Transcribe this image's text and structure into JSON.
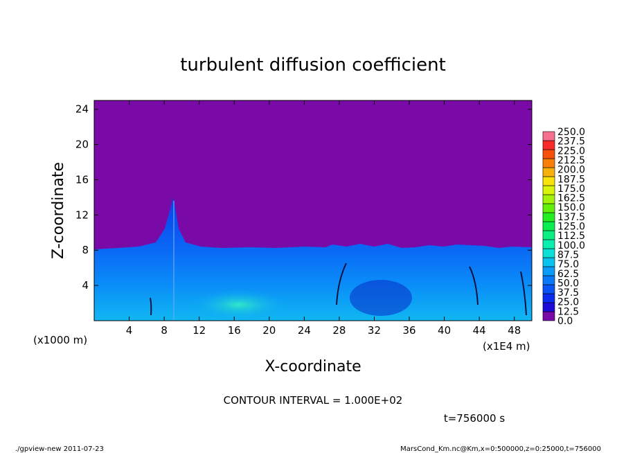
{
  "chart_data": {
    "type": "heatmap",
    "title": "turbulent diffusion coefficient",
    "xlabel": "X-coordinate",
    "ylabel": "Z-coordinate",
    "x_unit_note": "(x1E4 m)",
    "y_unit_note": "(x1000 m)",
    "xlim": [
      0,
      50
    ],
    "ylim": [
      0,
      25
    ],
    "x_ticks": [
      "4",
      "8",
      "12",
      "16",
      "20",
      "24",
      "28",
      "32",
      "36",
      "40",
      "44",
      "48"
    ],
    "y_ticks": [
      "4",
      "8",
      "12",
      "16",
      "20",
      "24"
    ],
    "contour_interval_text": "CONTOUR INTERVAL = 1.000E+02",
    "time_text": "t=756000  s",
    "colorbar": {
      "levels": [
        "0.0",
        "12.5",
        "25.0",
        "37.5",
        "50.0",
        "62.5",
        "75.0",
        "87.5",
        "100.0",
        "112.5",
        "125.0",
        "137.5",
        "150.0",
        "162.5",
        "175.0",
        "187.5",
        "200.0",
        "212.5",
        "225.0",
        "237.5",
        "250.0"
      ],
      "colors": [
        "#7a0aa8",
        "#1c0ad8",
        "#0a2cf0",
        "#0a52f5",
        "#0a78f8",
        "#0a9cf8",
        "#0ac2f0",
        "#0ae0d8",
        "#0aeeb0",
        "#0af080",
        "#0aee50",
        "#22ee20",
        "#62f00a",
        "#a2f20a",
        "#d8f40a",
        "#f8e20a",
        "#f8b00a",
        "#f8800a",
        "#f8500a",
        "#f82a2a",
        "#f87090"
      ]
    },
    "background_value_range": [
      0.0,
      12.5
    ],
    "boundary_layer_top_km": 8.3,
    "plume_peak": {
      "x": 9,
      "z": 14
    }
  },
  "footer": {
    "left": "./gpview-new   2011-07-23",
    "right": "MarsCond_Km.nc@Km,x=0:500000,z=0:25000,t=756000"
  },
  "icons": {
    "colorbar": "colorbar-legend"
  }
}
